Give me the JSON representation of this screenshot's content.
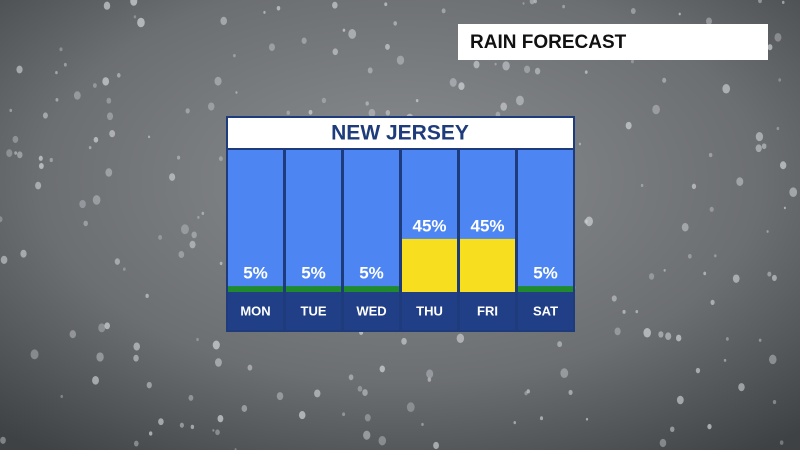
{
  "header": {
    "title": "RAIN FORECAST"
  },
  "chart_data": {
    "type": "bar",
    "title": "NEW JERSEY",
    "categories": [
      "MON",
      "TUE",
      "WED",
      "THU",
      "FRI",
      "SAT"
    ],
    "values": [
      5,
      5,
      5,
      45,
      45,
      5
    ],
    "value_labels": [
      "5%",
      "5%",
      "5%",
      "45%",
      "45%",
      "5%"
    ],
    "colors": [
      "#1f8a2e",
      "#1f8a2e",
      "#1f8a2e",
      "#f7de1e",
      "#f7de1e",
      "#1f8a2e"
    ],
    "ylim": [
      0,
      100
    ]
  }
}
